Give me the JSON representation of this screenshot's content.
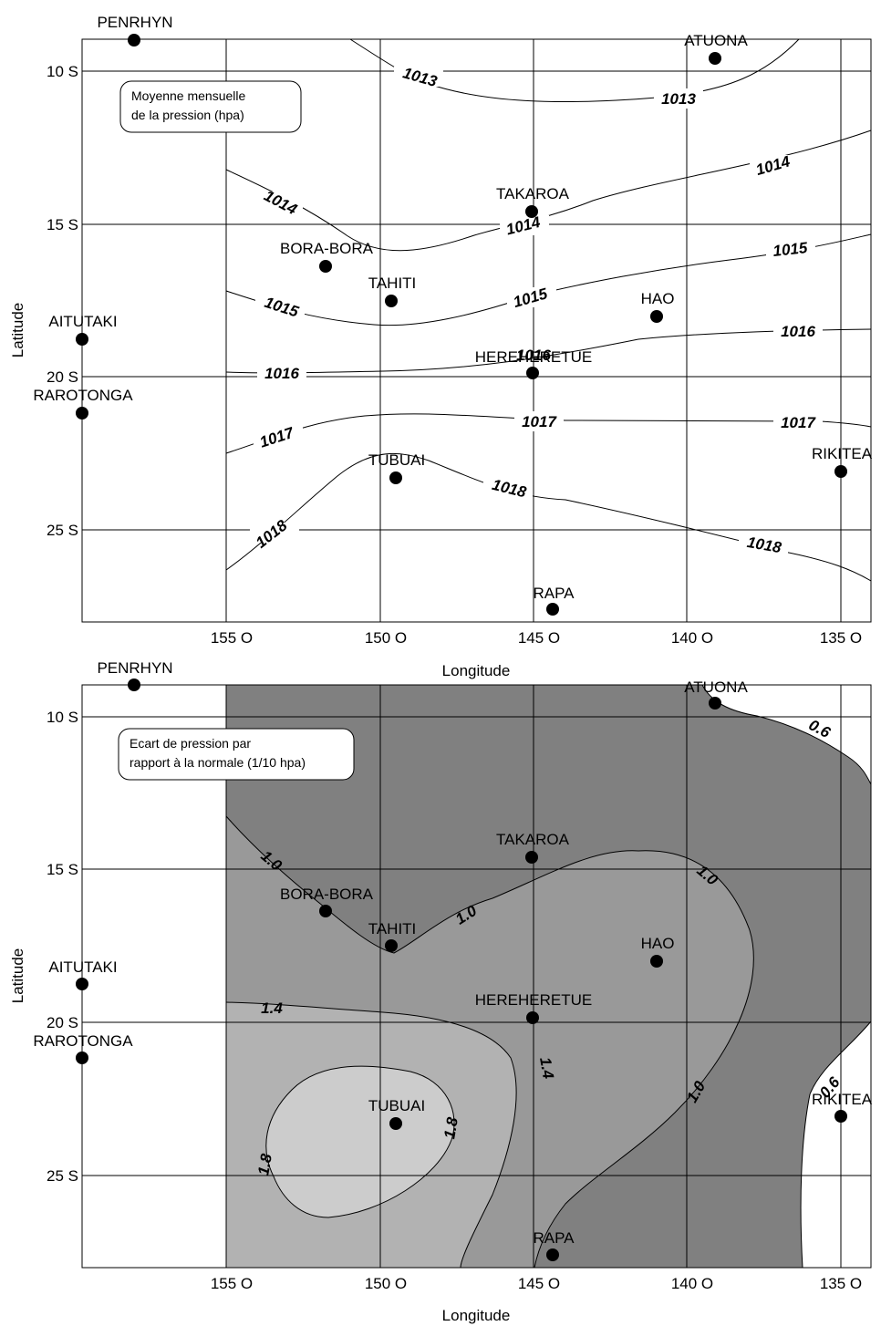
{
  "top_map": {
    "legend": [
      "Moyenne mensuelle",
      "de la pression (hpa)"
    ],
    "xlabel": "Longitude",
    "ylabel": "Latitude",
    "x_ticks": [
      "155 O",
      "150 O",
      "145 O",
      "140 O",
      "135 O"
    ],
    "y_ticks": [
      "10 S",
      "15 S",
      "20 S",
      "25 S"
    ],
    "isobar_labels": [
      "1013",
      "1013",
      "1014",
      "1014",
      "1014",
      "1015",
      "1015",
      "1015",
      "1016",
      "1016",
      "1016",
      "1017",
      "1017",
      "1017",
      "1018",
      "1018",
      "1018"
    ]
  },
  "bottom_map": {
    "legend": [
      "Ecart de pression par",
      "rapport à la normale (1/10 hpa)"
    ],
    "xlabel": "Longitude",
    "ylabel": "Latitude",
    "x_ticks": [
      "155 O",
      "150 O",
      "145 O",
      "140 O",
      "135 O"
    ],
    "y_ticks": [
      "10 S",
      "15 S",
      "20 S",
      "25 S"
    ],
    "contour_labels": [
      "0.6",
      "1.0",
      "1.0",
      "1.0",
      "1.0",
      "1.4",
      "1.4",
      "1.8",
      "1.8",
      "0.6"
    ],
    "fill_colors": {
      "lt_0_6": "#ffffff",
      "0_6_to_1_0": "#808080",
      "1_0_to_1_4": "#999999",
      "1_4_to_1_8": "#b2b2b2",
      "gt_1_8": "#cccccc"
    }
  },
  "stations": [
    "PENRHYN",
    "ATUONA",
    "TAKAROA",
    "BORA-BORA",
    "TAHITI",
    "HAO",
    "AITUTAKI",
    "HEREHERETUE",
    "RAROTONGA",
    "TUBUAI",
    "RIKITEA",
    "RAPA"
  ]
}
